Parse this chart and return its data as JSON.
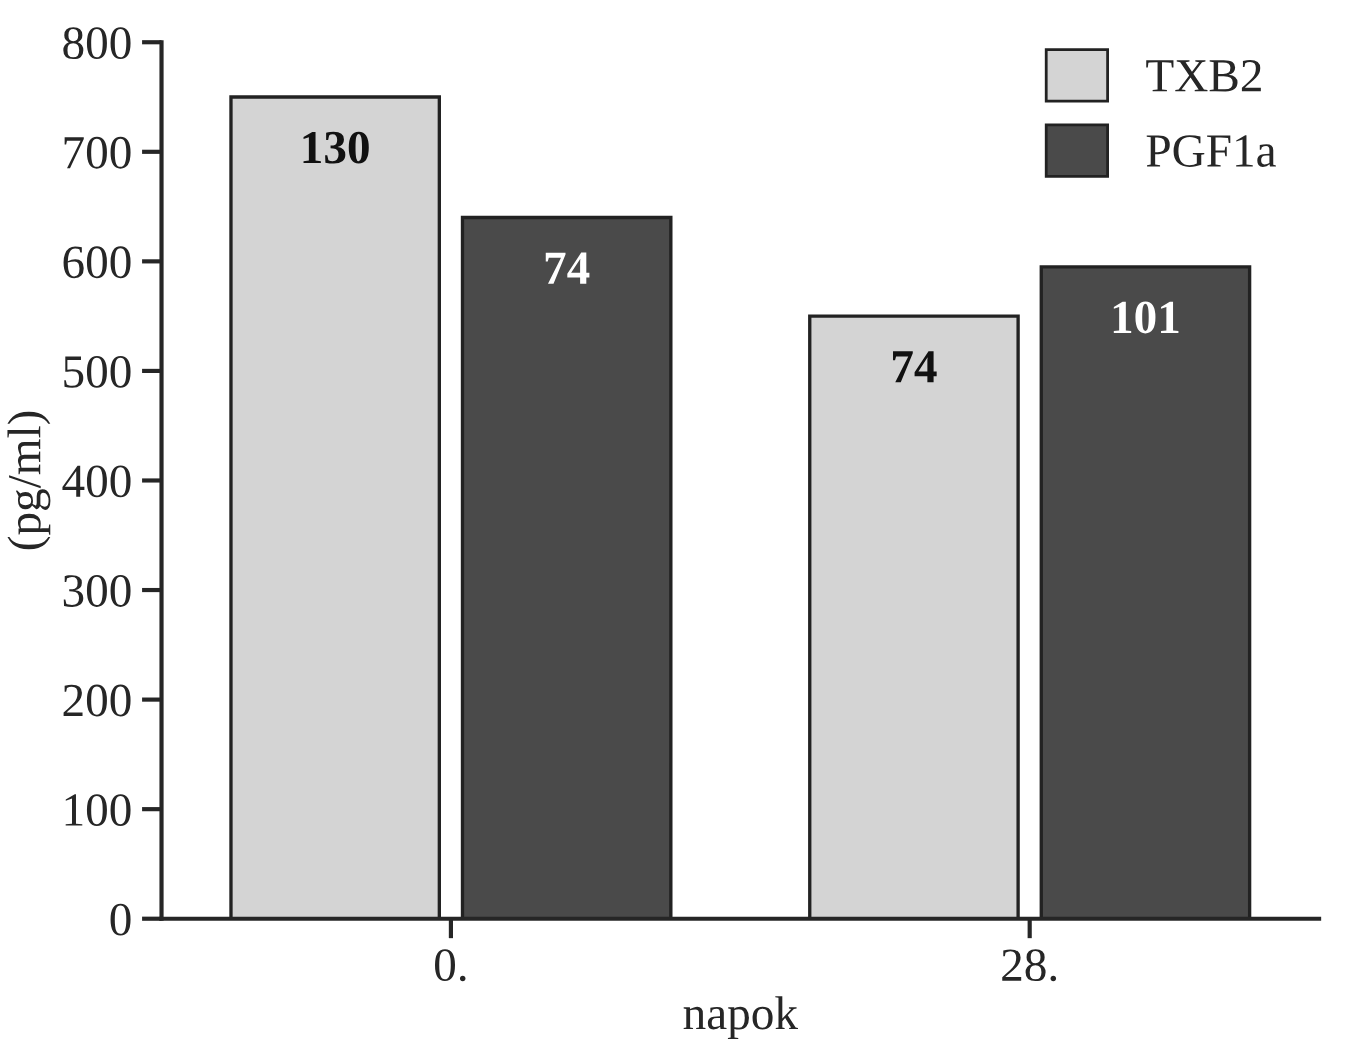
{
  "chart_data": {
    "type": "bar",
    "xlabel": "napok",
    "ylabel": "(pg/ml)",
    "categories": [
      "0.",
      "28."
    ],
    "series": [
      {
        "name": "TXB2",
        "color": "#d4d4d4",
        "values": [
          750,
          550
        ]
      },
      {
        "name": "PGF1a",
        "color": "#4a4a4a",
        "values": [
          640,
          595
        ]
      }
    ],
    "annotations": [
      "130",
      "74",
      "74",
      "101"
    ],
    "ylim": [
      0,
      800
    ],
    "yticks": [
      0,
      100,
      200,
      300,
      400,
      500,
      600,
      700,
      800
    ],
    "grid": false,
    "legend": "top right"
  }
}
